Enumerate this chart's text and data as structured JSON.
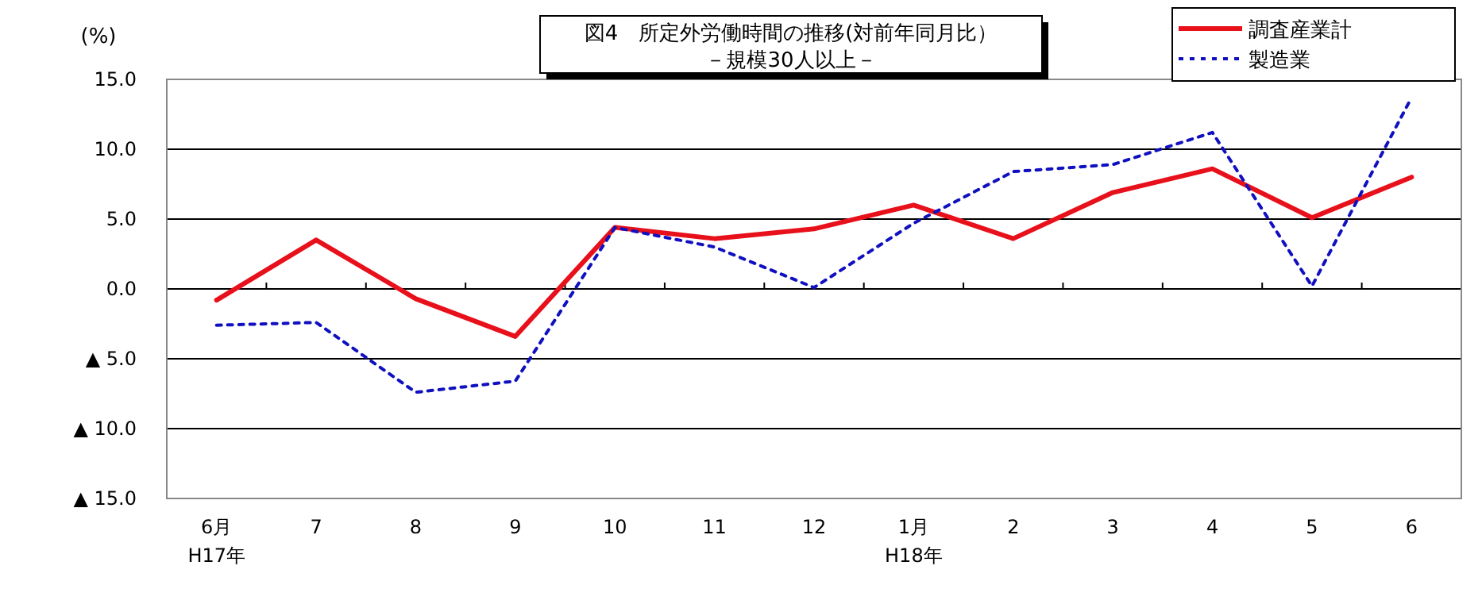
{
  "chart_data": {
    "type": "line",
    "title": "図4　所定外労働時間の推移(対前年同月比）",
    "subtitle": "－規模30人以上－",
    "ylabel": "(%)",
    "categories": [
      "6月\nH17年",
      "7",
      "8",
      "9",
      "10",
      "11",
      "12",
      "1月\nH18年",
      "2",
      "3",
      "4",
      "5",
      "6"
    ],
    "series": [
      {
        "name": "調査産業計",
        "color": "#e8101a",
        "line_style": "solid",
        "values": [
          -0.8,
          3.5,
          -0.7,
          -3.4,
          4.4,
          3.6,
          4.3,
          6.0,
          3.6,
          6.9,
          8.6,
          5.1,
          8.0
        ]
      },
      {
        "name": "製造業",
        "color": "#1010c0",
        "line_style": "dotted",
        "values": [
          -2.6,
          -2.4,
          -7.4,
          -6.6,
          4.4,
          3.0,
          0.1,
          4.7,
          8.4,
          8.9,
          11.2,
          0.2,
          13.7
        ]
      }
    ],
    "ylim": [
      -15,
      15
    ],
    "yticks": [
      {
        "value": 15,
        "label": "15.0"
      },
      {
        "value": 10,
        "label": "10.0"
      },
      {
        "value": 5,
        "label": "5.0"
      },
      {
        "value": 0,
        "label": "0.0"
      },
      {
        "value": -5,
        "label": "▲ 5.0"
      },
      {
        "value": -10,
        "label": "▲ 10.0"
      },
      {
        "value": -15,
        "label": "▲ 15.0"
      }
    ],
    "grid": "y",
    "legend": "top right",
    "marker": "none"
  }
}
